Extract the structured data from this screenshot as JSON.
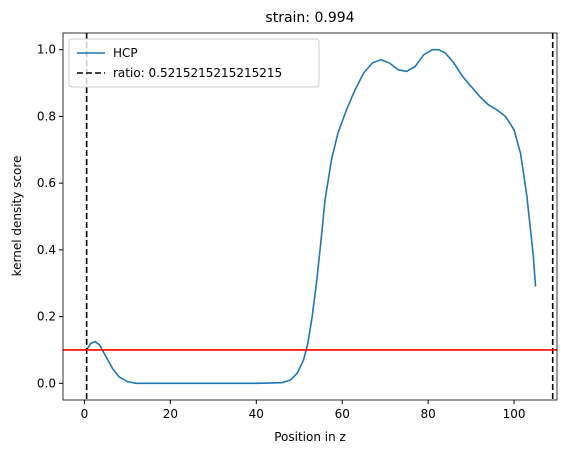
{
  "chart_data": {
    "type": "line",
    "title": "strain: 0.994",
    "xlabel": "Position in z",
    "ylabel": "kernel density score",
    "xlim": [
      -5,
      110
    ],
    "ylim": [
      -0.05,
      1.05
    ],
    "xticks": [
      0,
      20,
      40,
      60,
      80,
      100
    ],
    "yticks": [
      {
        "value": 0,
        "label": "0.0"
      },
      {
        "value": 0.2,
        "label": "0.2"
      },
      {
        "value": 0.4,
        "label": "0.4"
      },
      {
        "value": 0.6,
        "label": "0.6"
      },
      {
        "value": 0.8,
        "label": "0.8"
      },
      {
        "value": 1.0,
        "label": "1.0"
      }
    ],
    "series": [
      {
        "name": "HCP",
        "color": "#1f77b4",
        "x": [
          0.5,
          1.5,
          2.5,
          3.5,
          5,
          6.5,
          8,
          10,
          12,
          20,
          30,
          40,
          46,
          48,
          49.5,
          51,
          52,
          53,
          54,
          55,
          56,
          57.5,
          59,
          61,
          63,
          65,
          67,
          69,
          71,
          73,
          75,
          77,
          79,
          81,
          82.5,
          84,
          86,
          88,
          90,
          92,
          94,
          96,
          98,
          100,
          101.5,
          103,
          104.5,
          105
        ],
        "values": [
          0.1,
          0.12,
          0.125,
          0.115,
          0.08,
          0.045,
          0.02,
          0.005,
          0.0,
          0.0,
          0.0,
          0.0,
          0.002,
          0.01,
          0.03,
          0.07,
          0.12,
          0.2,
          0.3,
          0.42,
          0.55,
          0.67,
          0.75,
          0.82,
          0.88,
          0.93,
          0.96,
          0.97,
          0.96,
          0.94,
          0.935,
          0.95,
          0.985,
          1.0,
          1.0,
          0.99,
          0.96,
          0.92,
          0.89,
          0.86,
          0.835,
          0.82,
          0.8,
          0.76,
          0.69,
          0.56,
          0.38,
          0.29
        ]
      },
      {
        "name": "ratio: 0.5215215215215215",
        "color": "#000000",
        "vlines": [
          0.5,
          109
        ]
      }
    ],
    "hline": {
      "value": 0.1,
      "color": "#ff0000"
    },
    "legend": "upper left"
  }
}
